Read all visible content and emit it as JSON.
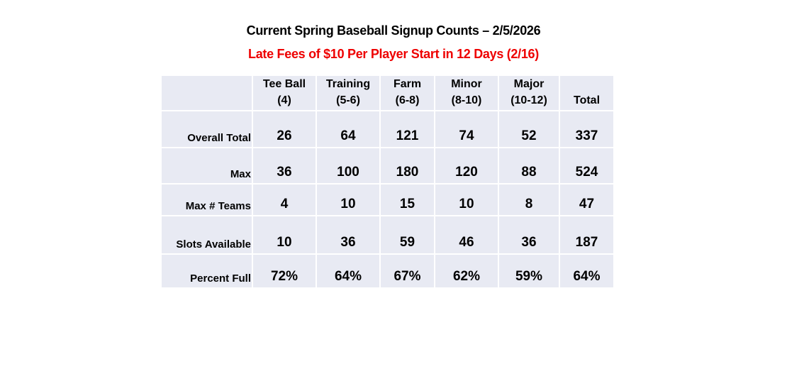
{
  "title": "Current Spring Baseball Signup Counts – 2/5/2026",
  "subtitle": "Late Fees of $10 Per Player Start in 12 Days (2/16)",
  "colors": {
    "subtitle": "#ee0000",
    "table_bg": "#e8eaf3",
    "grid": "#ffffff"
  },
  "table": {
    "headers": [
      {
        "line1": "Tee Ball",
        "line2": "(4)"
      },
      {
        "line1": "Training",
        "line2": "(5-6)"
      },
      {
        "line1": "Farm",
        "line2": "(6-8)"
      },
      {
        "line1": "Minor",
        "line2": "(8-10)"
      },
      {
        "line1": "Major",
        "line2": "(10-12)"
      },
      {
        "line1": "",
        "line2": "Total"
      }
    ],
    "rows": [
      {
        "label": "Overall Total",
        "values": [
          "26",
          "64",
          "121",
          "74",
          "52",
          "337"
        ]
      },
      {
        "label": "Max",
        "values": [
          "36",
          "100",
          "180",
          "120",
          "88",
          "524"
        ]
      },
      {
        "label": "Max # Teams",
        "values": [
          "4",
          "10",
          "15",
          "10",
          "8",
          "47"
        ]
      },
      {
        "label": "Slots Available",
        "values": [
          "10",
          "36",
          "59",
          "46",
          "36",
          "187"
        ]
      },
      {
        "label": "Percent Full",
        "values": [
          "72%",
          "64%",
          "67%",
          "62%",
          "59%",
          "64%"
        ]
      }
    ]
  }
}
